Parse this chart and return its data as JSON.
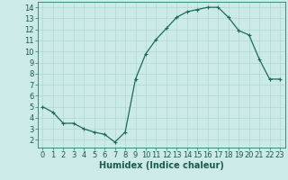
{
  "x": [
    0,
    1,
    2,
    3,
    4,
    5,
    6,
    7,
    8,
    9,
    10,
    11,
    12,
    13,
    14,
    15,
    16,
    17,
    18,
    19,
    20,
    21,
    22,
    23
  ],
  "y": [
    5.0,
    4.5,
    3.5,
    3.5,
    3.0,
    2.7,
    2.5,
    1.8,
    2.7,
    7.5,
    9.8,
    11.1,
    12.1,
    13.1,
    13.6,
    13.8,
    14.0,
    14.0,
    13.1,
    11.9,
    11.5,
    9.3,
    7.5,
    7.5
  ],
  "line_color": "#1a6b5a",
  "marker": "+",
  "marker_size": 3,
  "marker_linewidth": 0.8,
  "line_width": 0.9,
  "bg_color": "#cceae7",
  "grid_color": "#b0d8d4",
  "xlabel": "Humidex (Indice chaleur)",
  "xlabel_fontsize": 7,
  "tick_fontsize": 6,
  "xlim": [
    -0.5,
    23.5
  ],
  "ylim": [
    1.3,
    14.5
  ],
  "yticks": [
    2,
    3,
    4,
    5,
    6,
    7,
    8,
    9,
    10,
    11,
    12,
    13,
    14
  ],
  "xticks": [
    0,
    1,
    2,
    3,
    4,
    5,
    6,
    7,
    8,
    9,
    10,
    11,
    12,
    13,
    14,
    15,
    16,
    17,
    18,
    19,
    20,
    21,
    22,
    23
  ],
  "spine_color": "#2a7a6a",
  "label_color": "#1a5a50"
}
